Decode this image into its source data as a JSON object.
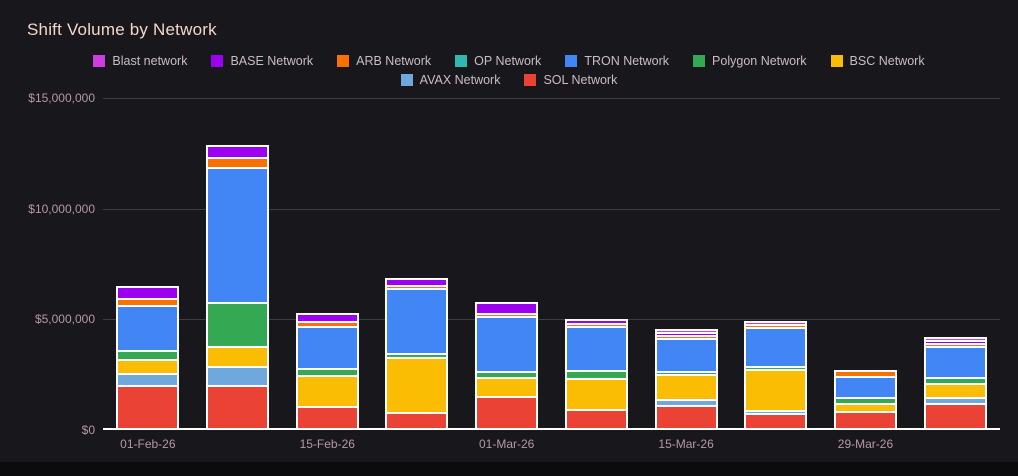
{
  "title": "Shift Volume by Network",
  "colors": {
    "bg_page": "#0b0b0e",
    "bg_chart": "#17171c",
    "grid": "#3d3d42",
    "baseline": "#ffffff",
    "bar_border": "#ffffff",
    "title_text": "#f2d7c9",
    "axis_text": "#b49aa1",
    "legend_text": "#c9bdc2"
  },
  "legend": [
    {
      "label": "Blast network",
      "color": "#cf3de0"
    },
    {
      "label": "BASE Network",
      "color": "#9c00f0"
    },
    {
      "label": "ARB Network",
      "color": "#fb7100"
    },
    {
      "label": "OP Network",
      "color": "#2fb8af"
    },
    {
      "label": "TRON Network",
      "color": "#4285f4"
    },
    {
      "label": "Polygon Network",
      "color": "#34a853"
    },
    {
      "label": "BSC Network",
      "color": "#fbbc04"
    },
    {
      "label": "AVAX Network",
      "color": "#6fa8dc"
    },
    {
      "label": "SOL Network",
      "color": "#ea4335"
    }
  ],
  "y_axis": {
    "tick_labels": [
      "$15,000,000",
      "$10,000,000",
      "$5,000,000",
      "$0"
    ],
    "tick_values": [
      15000000,
      10000000,
      5000000,
      0
    ]
  },
  "chart_data": {
    "type": "bar",
    "stacked": true,
    "title": "Shift Volume by Network",
    "xlabel": "",
    "ylabel": "",
    "ylim": [
      0,
      15000000
    ],
    "grid": true,
    "legend_position": "top",
    "categories": [
      "01-Feb-26",
      "",
      "15-Feb-26",
      "",
      "01-Mar-26",
      "",
      "15-Mar-26",
      "",
      "29-Mar-26",
      ""
    ],
    "series": [
      {
        "name": "SOL Network",
        "color": "#ea4335",
        "values": [
          1950000,
          1950000,
          1000000,
          720000,
          1450000,
          850000,
          1050000,
          700000,
          750000,
          1150000
        ]
      },
      {
        "name": "AVAX Network",
        "color": "#6fa8dc",
        "values": [
          550000,
          850000,
          0,
          0,
          0,
          0,
          260000,
          150000,
          0,
          250000
        ]
      },
      {
        "name": "BSC Network",
        "color": "#fbbc04",
        "values": [
          620000,
          900000,
          1400000,
          2500000,
          850000,
          1400000,
          1130000,
          1850000,
          380000,
          620000
        ]
      },
      {
        "name": "Polygon Network",
        "color": "#34a853",
        "values": [
          420000,
          2000000,
          320000,
          200000,
          270000,
          350000,
          150000,
          150000,
          270000,
          270000
        ]
      },
      {
        "name": "TRON Network",
        "color": "#4285f4",
        "values": [
          2030000,
          6100000,
          1900000,
          2950000,
          2480000,
          2000000,
          1500000,
          1760000,
          950000,
          1400000
        ]
      },
      {
        "name": "OP Network",
        "color": "#2fb8af",
        "values": [
          0,
          0,
          0,
          0,
          0,
          0,
          0,
          0,
          0,
          0
        ]
      },
      {
        "name": "ARB Network",
        "color": "#fb7100",
        "values": [
          320000,
          450000,
          220000,
          100000,
          100000,
          100000,
          150000,
          100000,
          270000,
          100000
        ]
      },
      {
        "name": "BASE Network",
        "color": "#9c00f0",
        "values": [
          550000,
          550000,
          370000,
          300000,
          480000,
          200000,
          100000,
          0,
          0,
          130000
        ]
      },
      {
        "name": "Blast network",
        "color": "#cf3de0",
        "values": [
          0,
          0,
          0,
          0,
          0,
          0,
          70000,
          150000,
          0,
          100000
        ]
      }
    ]
  }
}
